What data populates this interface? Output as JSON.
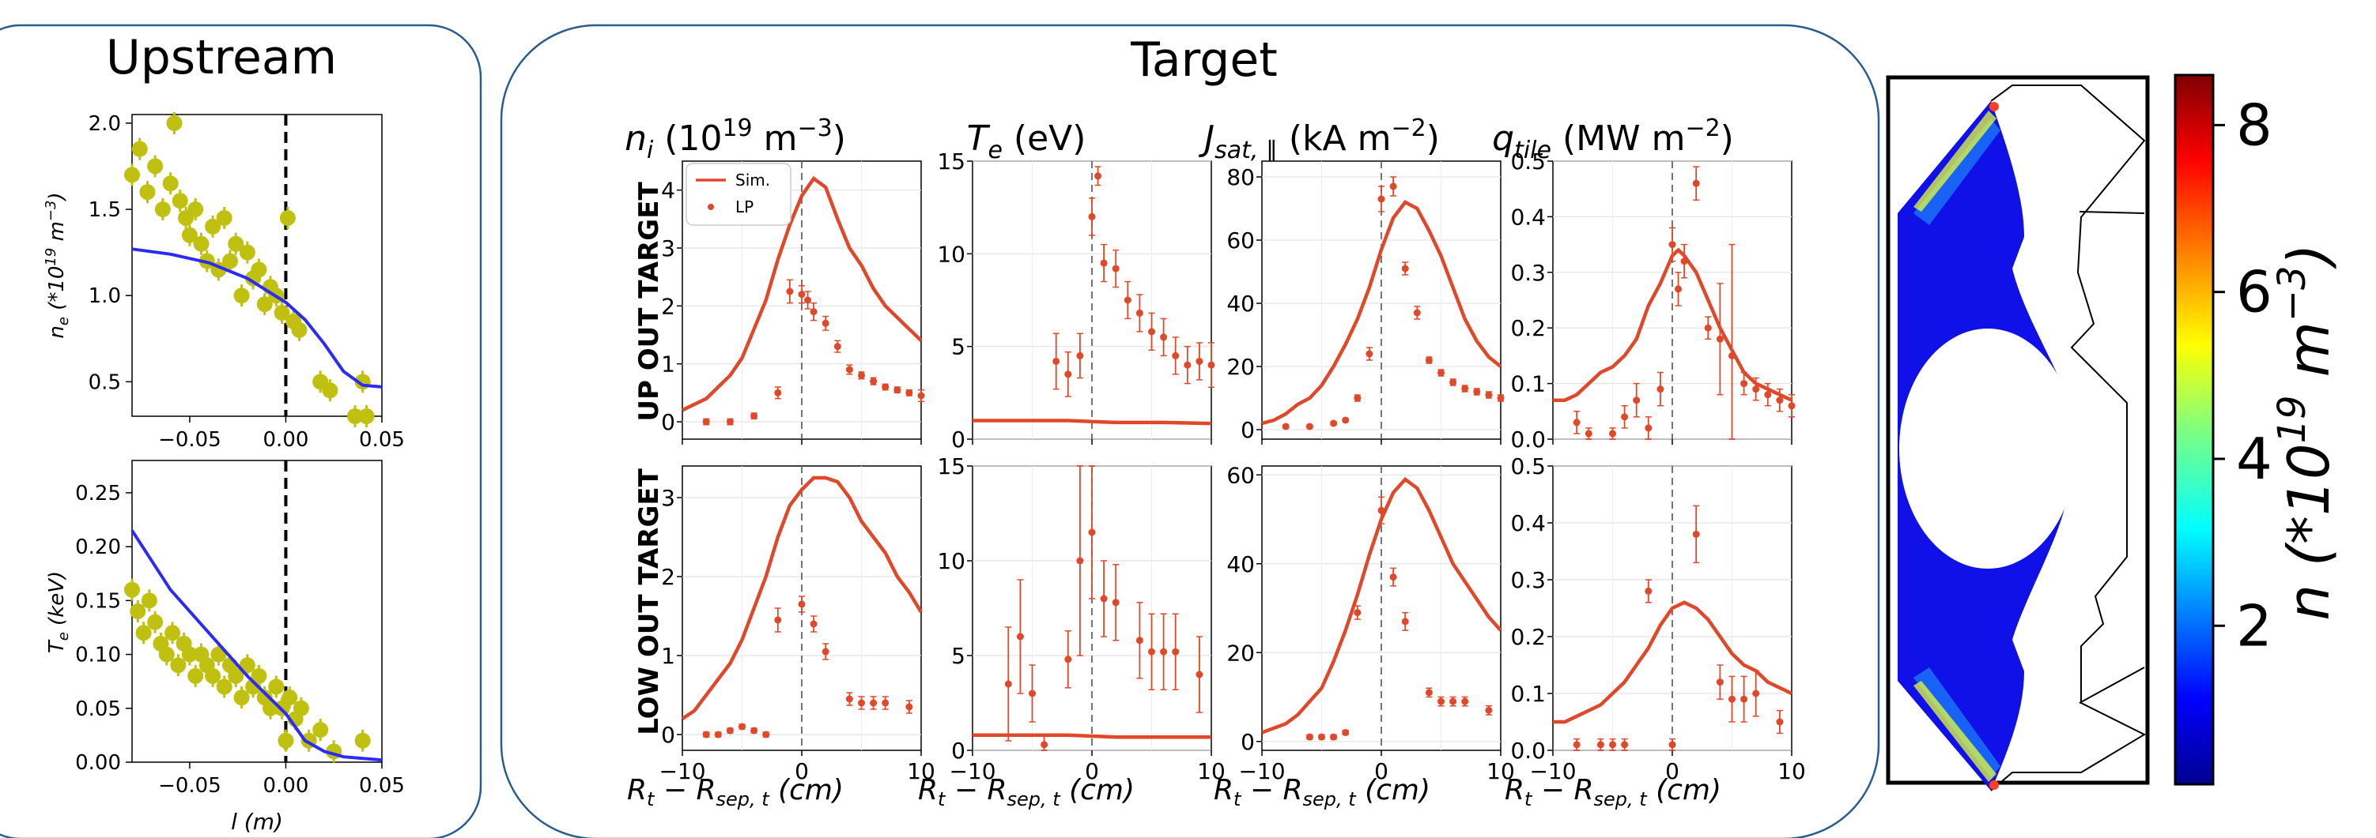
{
  "upstream": {
    "title": "Upstream",
    "x_tick_labels": [
      "−0.05",
      "0.00",
      "0.05"
    ],
    "x_label": "l (m)",
    "panels": [
      {
        "key": "ne",
        "y_label": "n_e (*10^19 m^-3)",
        "ylim": [
          0.3,
          2.05
        ],
        "y_ticks": [
          0.5,
          1.0,
          1.5,
          2.0
        ],
        "y_tick_labels": [
          "0.5",
          "1.0",
          "1.5",
          "2.0"
        ]
      },
      {
        "key": "te",
        "y_label": "T_e (keV)",
        "ylim": [
          0.0,
          0.28
        ],
        "y_ticks": [
          0.0,
          0.05,
          0.1,
          0.15,
          0.2,
          0.25
        ],
        "y_tick_labels": [
          "0.00",
          "0.05",
          "0.10",
          "0.15",
          "0.20",
          "0.25"
        ]
      }
    ]
  },
  "target": {
    "title": "Target",
    "column_titles": [
      "n_i (10^19 m^-3)",
      "T_e (eV)",
      "J_sat,∥ (kA m^-2)",
      "q_tile (MW m^-2)"
    ],
    "row_labels": [
      "UP OUT TARGET",
      "LOW OUT TARGET"
    ],
    "x_tick_labels": [
      "−10",
      "0",
      "10"
    ],
    "x_label": "R_t − R_sep,t (cm)",
    "legend": {
      "sim": "Sim.",
      "lp": "LP"
    }
  },
  "colorbar": {
    "tick_labels": [
      "2",
      "4",
      "6",
      "8"
    ],
    "label": "n (*10^19 m^-3)"
  },
  "colors": {
    "sim_target": "#e0482a",
    "lp_points": "#e0482a",
    "upstream_fit": "#2b2bf5",
    "upstream_points": "#c0c010",
    "frame": "#2a5d8f"
  },
  "chart_data": [
    {
      "type": "scatter",
      "id": "upstream_ne",
      "title": "Upstream",
      "xlabel": "",
      "ylabel": "n_e (*10^19 m^-3)",
      "xlim": [
        -0.08,
        0.05
      ],
      "ylim": [
        0.3,
        2.05
      ],
      "vline": 0.0,
      "series": [
        {
          "kind": "points",
          "x": [
            -0.08,
            -0.076,
            -0.072,
            -0.068,
            -0.064,
            -0.06,
            -0.058,
            -0.055,
            -0.052,
            -0.05,
            -0.047,
            -0.044,
            -0.041,
            -0.038,
            -0.035,
            -0.032,
            -0.029,
            -0.026,
            -0.023,
            -0.02,
            -0.017,
            -0.014,
            -0.011,
            -0.008,
            -0.005,
            -0.002,
            0.001,
            0.004,
            0.007,
            0.018,
            0.023,
            0.036,
            0.04,
            0.042
          ],
          "y": [
            1.7,
            1.85,
            1.6,
            1.75,
            1.5,
            1.65,
            2.0,
            1.55,
            1.45,
            1.35,
            1.5,
            1.3,
            1.2,
            1.4,
            1.15,
            1.45,
            1.2,
            1.3,
            1.0,
            1.25,
            1.1,
            1.15,
            0.95,
            1.05,
            1.0,
            0.9,
            1.45,
            0.85,
            0.8,
            0.5,
            0.45,
            0.3,
            0.5,
            0.3
          ]
        },
        {
          "kind": "line",
          "x": [
            -0.08,
            -0.06,
            -0.04,
            -0.02,
            -0.01,
            0.0,
            0.01,
            0.02,
            0.03,
            0.04,
            0.05
          ],
          "y": [
            1.27,
            1.24,
            1.19,
            1.1,
            1.03,
            0.96,
            0.86,
            0.72,
            0.56,
            0.48,
            0.47
          ]
        }
      ]
    },
    {
      "type": "scatter",
      "id": "upstream_te",
      "xlabel": "l (m)",
      "ylabel": "T_e (keV)",
      "xlim": [
        -0.08,
        0.05
      ],
      "ylim": [
        0.0,
        0.28
      ],
      "vline": 0.0,
      "series": [
        {
          "kind": "points",
          "x": [
            -0.08,
            -0.077,
            -0.074,
            -0.071,
            -0.068,
            -0.065,
            -0.062,
            -0.059,
            -0.056,
            -0.053,
            -0.05,
            -0.047,
            -0.044,
            -0.041,
            -0.038,
            -0.035,
            -0.032,
            -0.029,
            -0.026,
            -0.023,
            -0.02,
            -0.017,
            -0.014,
            -0.011,
            -0.008,
            -0.005,
            -0.002,
            0.0,
            0.002,
            0.005,
            0.008,
            0.012,
            0.018,
            0.025,
            0.04
          ],
          "y": [
            0.16,
            0.14,
            0.12,
            0.15,
            0.13,
            0.11,
            0.1,
            0.12,
            0.09,
            0.11,
            0.1,
            0.08,
            0.1,
            0.09,
            0.08,
            0.1,
            0.07,
            0.09,
            0.08,
            0.06,
            0.09,
            0.07,
            0.08,
            0.06,
            0.05,
            0.07,
            0.05,
            0.02,
            0.06,
            0.04,
            0.05,
            0.02,
            0.03,
            0.01,
            0.02
          ]
        },
        {
          "kind": "line",
          "x": [
            -0.08,
            -0.06,
            -0.04,
            -0.02,
            0.0,
            0.01,
            0.02,
            0.03,
            0.05
          ],
          "y": [
            0.215,
            0.16,
            0.12,
            0.08,
            0.045,
            0.02,
            0.01,
            0.005,
            0.002
          ]
        }
      ]
    },
    {
      "type": "line",
      "id": "up_ni",
      "xlim": [
        -10,
        10
      ],
      "ylim": [
        -0.3,
        4.5
      ],
      "y_ticks": [
        0,
        1,
        2,
        3,
        4
      ],
      "vline": 0,
      "sim": {
        "x": [
          -10,
          -9,
          -8,
          -7,
          -6,
          -5,
          -4,
          -3,
          -2,
          -1,
          0,
          1,
          2,
          3,
          4,
          5,
          6,
          7,
          8,
          9,
          10
        ],
        "y": [
          0.2,
          0.3,
          0.4,
          0.6,
          0.8,
          1.1,
          1.6,
          2.1,
          2.8,
          3.4,
          3.9,
          4.2,
          4.05,
          3.5,
          3.0,
          2.7,
          2.3,
          2.0,
          1.8,
          1.6,
          1.4
        ]
      },
      "lp": {
        "x": [
          -8,
          -6,
          -4,
          -2,
          -1,
          0,
          0.5,
          1,
          2,
          3,
          4,
          5,
          6,
          7,
          8,
          9,
          10
        ],
        "y": [
          0.0,
          0.0,
          0.1,
          0.5,
          2.25,
          2.2,
          2.1,
          1.9,
          1.7,
          1.3,
          0.9,
          0.8,
          0.7,
          0.6,
          0.55,
          0.5,
          0.45
        ],
        "err": [
          0.05,
          0.05,
          0.05,
          0.1,
          0.2,
          0.15,
          0.15,
          0.15,
          0.12,
          0.1,
          0.08,
          0.06,
          0.06,
          0.05,
          0.05,
          0.05,
          0.1
        ]
      }
    },
    {
      "type": "line",
      "id": "up_te",
      "xlim": [
        -10,
        10
      ],
      "ylim": [
        0,
        15
      ],
      "y_ticks": [
        0,
        5,
        10,
        15
      ],
      "vline": 0,
      "sim": {
        "x": [
          -10,
          -6,
          -2,
          0,
          2,
          6,
          10
        ],
        "y": [
          1.0,
          1.0,
          1.0,
          0.95,
          0.9,
          0.9,
          0.85
        ]
      },
      "lp": {
        "x": [
          -3,
          -2,
          -1,
          0,
          0.5,
          1,
          2,
          3,
          4,
          5,
          6,
          7,
          8,
          9,
          10
        ],
        "y": [
          4.2,
          3.5,
          4.5,
          12.0,
          14.2,
          9.5,
          9.2,
          7.5,
          6.8,
          5.8,
          5.5,
          4.5,
          4.0,
          4.2,
          4.0
        ],
        "err": [
          1.5,
          1.2,
          1.2,
          1.0,
          0.5,
          1.0,
          1.0,
          1.0,
          1.0,
          1.0,
          1.0,
          1.0,
          1.0,
          1.0,
          1.2
        ]
      }
    },
    {
      "type": "line",
      "id": "up_jsat",
      "xlim": [
        -10,
        10
      ],
      "ylim": [
        -3,
        85
      ],
      "y_ticks": [
        0,
        20,
        40,
        60,
        80
      ],
      "vline": 0,
      "sim": {
        "x": [
          -10,
          -9,
          -8,
          -7,
          -6,
          -5,
          -4,
          -3,
          -2,
          -1,
          0,
          1,
          2,
          3,
          4,
          5,
          6,
          7,
          8,
          9,
          10
        ],
        "y": [
          2,
          3,
          5,
          8,
          10,
          14,
          20,
          27,
          35,
          45,
          57,
          67,
          72,
          70,
          63,
          55,
          45,
          35,
          28,
          23,
          20
        ]
      },
      "lp": {
        "x": [
          -8,
          -6,
          -4,
          -3,
          -2,
          -1,
          0,
          1,
          2,
          3,
          4,
          5,
          6,
          7,
          8,
          9,
          10
        ],
        "y": [
          1,
          1,
          2,
          3,
          10,
          24,
          73,
          77,
          51,
          37,
          22,
          18,
          15,
          13,
          12,
          11,
          10
        ],
        "err": [
          0.5,
          0.5,
          0.5,
          0.5,
          1,
          2,
          4,
          3,
          2,
          2,
          1,
          1,
          1,
          1,
          1,
          1,
          1
        ]
      }
    },
    {
      "type": "line",
      "id": "up_q",
      "xlim": [
        -10,
        10
      ],
      "ylim": [
        0,
        0.5
      ],
      "y_ticks": [
        0.0,
        0.1,
        0.2,
        0.3,
        0.4,
        0.5
      ],
      "vline": 0,
      "sim": {
        "x": [
          -10,
          -9,
          -8,
          -7,
          -6,
          -5,
          -4,
          -3,
          -2,
          -1,
          0,
          0.5,
          1,
          2,
          3,
          4,
          5,
          6,
          7,
          8,
          9,
          10
        ],
        "y": [
          0.07,
          0.07,
          0.08,
          0.1,
          0.12,
          0.13,
          0.15,
          0.18,
          0.24,
          0.28,
          0.33,
          0.34,
          0.33,
          0.3,
          0.25,
          0.2,
          0.16,
          0.12,
          0.1,
          0.09,
          0.08,
          0.07
        ]
      },
      "lp": {
        "x": [
          -8,
          -7,
          -5,
          -4,
          -3,
          -2,
          -1,
          0,
          0.5,
          1,
          2,
          3,
          4,
          5,
          6,
          7,
          8,
          9,
          10
        ],
        "y": [
          0.03,
          0.01,
          0.01,
          0.04,
          0.07,
          0.02,
          0.09,
          0.35,
          0.27,
          0.32,
          0.46,
          0.2,
          0.18,
          0.15,
          0.1,
          0.09,
          0.08,
          0.07,
          0.06
        ],
        "err": [
          0.02,
          0.01,
          0.01,
          0.02,
          0.03,
          0.02,
          0.03,
          0.03,
          0.03,
          0.03,
          0.03,
          0.02,
          0.1,
          0.2,
          0.02,
          0.02,
          0.02,
          0.02,
          0.02
        ]
      }
    },
    {
      "type": "line",
      "id": "low_ni",
      "xlim": [
        -10,
        10
      ],
      "ylim": [
        -0.2,
        3.4
      ],
      "y_ticks": [
        0,
        1,
        2,
        3
      ],
      "vline": 0,
      "sim": {
        "x": [
          -10,
          -9,
          -8,
          -7,
          -6,
          -5,
          -4,
          -3,
          -2,
          -1,
          0,
          1,
          2,
          3,
          4,
          5,
          6,
          7,
          8,
          9,
          10
        ],
        "y": [
          0.2,
          0.3,
          0.5,
          0.7,
          0.9,
          1.2,
          1.6,
          2.0,
          2.5,
          2.9,
          3.1,
          3.25,
          3.25,
          3.2,
          3.0,
          2.7,
          2.5,
          2.3,
          2.0,
          1.8,
          1.55
        ]
      },
      "lp": {
        "x": [
          -8,
          -7,
          -6,
          -5,
          -4,
          -3,
          -2,
          0,
          1,
          2,
          4,
          5,
          6,
          7,
          9
        ],
        "y": [
          0.0,
          0.0,
          0.05,
          0.1,
          0.05,
          0.0,
          1.45,
          1.65,
          1.4,
          1.05,
          0.45,
          0.4,
          0.4,
          0.4,
          0.35
        ],
        "err": [
          0.03,
          0.03,
          0.03,
          0.03,
          0.03,
          0.03,
          0.15,
          0.1,
          0.1,
          0.1,
          0.08,
          0.08,
          0.08,
          0.08,
          0.08
        ]
      }
    },
    {
      "type": "line",
      "id": "low_te",
      "xlim": [
        -10,
        10
      ],
      "ylim": [
        0,
        15
      ],
      "y_ticks": [
        0,
        5,
        10,
        15
      ],
      "vline": 0,
      "sim": {
        "x": [
          -10,
          -6,
          -2,
          0,
          2,
          6,
          10
        ],
        "y": [
          0.8,
          0.8,
          0.8,
          0.75,
          0.7,
          0.7,
          0.7
        ]
      },
      "lp": {
        "x": [
          -7,
          -6,
          -5,
          -4,
          -2,
          -1,
          0,
          1,
          2,
          4,
          5,
          6,
          7,
          9
        ],
        "y": [
          3.5,
          6.0,
          3.0,
          0.3,
          4.8,
          10.0,
          11.5,
          8.0,
          7.8,
          5.8,
          5.2,
          5.2,
          5.2,
          4.0
        ],
        "err": [
          3.0,
          3.0,
          1.5,
          0.5,
          1.5,
          5.0,
          3.5,
          2.0,
          2.0,
          2.0,
          2.0,
          2.0,
          2.0,
          2.0
        ]
      }
    },
    {
      "type": "line",
      "id": "low_jsat",
      "xlim": [
        -10,
        10
      ],
      "ylim": [
        -2,
        62
      ],
      "y_ticks": [
        0,
        20,
        40,
        60
      ],
      "vline": 0,
      "sim": {
        "x": [
          -10,
          -9,
          -8,
          -7,
          -6,
          -5,
          -4,
          -3,
          -2,
          -1,
          0,
          1,
          2,
          3,
          4,
          5,
          6,
          7,
          8,
          9,
          10
        ],
        "y": [
          2,
          3,
          4,
          6,
          9,
          12,
          18,
          25,
          33,
          42,
          50,
          56,
          59,
          57,
          52,
          46,
          40,
          36,
          32,
          28,
          25
        ]
      },
      "lp": {
        "x": [
          -6,
          -5,
          -4,
          -3,
          -2,
          0,
          1,
          2,
          4,
          5,
          6,
          7,
          9
        ],
        "y": [
          1,
          1,
          1,
          2,
          29,
          52,
          37,
          27,
          11,
          9,
          9,
          9,
          7
        ],
        "err": [
          0.5,
          0.5,
          0.5,
          0.5,
          1.5,
          3,
          2,
          2,
          1,
          1,
          1,
          1,
          1
        ]
      }
    },
    {
      "type": "line",
      "id": "low_q",
      "xlim": [
        -10,
        10
      ],
      "ylim": [
        0,
        0.5
      ],
      "y_ticks": [
        0.0,
        0.1,
        0.2,
        0.3,
        0.4,
        0.5
      ],
      "vline": 0,
      "sim": {
        "x": [
          -10,
          -9,
          -8,
          -7,
          -6,
          -5,
          -4,
          -3,
          -2,
          -1,
          0,
          1,
          2,
          3,
          4,
          5,
          6,
          7,
          8,
          9,
          10
        ],
        "y": [
          0.05,
          0.05,
          0.06,
          0.07,
          0.08,
          0.1,
          0.12,
          0.15,
          0.18,
          0.22,
          0.25,
          0.26,
          0.25,
          0.23,
          0.2,
          0.17,
          0.15,
          0.14,
          0.12,
          0.11,
          0.1
        ]
      },
      "lp": {
        "x": [
          -8,
          -6,
          -5,
          -4,
          -2,
          0,
          2,
          4,
          5,
          6,
          7,
          9
        ],
        "y": [
          0.01,
          0.01,
          0.01,
          0.01,
          0.28,
          0.01,
          0.38,
          0.12,
          0.09,
          0.09,
          0.1,
          0.05
        ],
        "err": [
          0.01,
          0.01,
          0.01,
          0.01,
          0.02,
          0.01,
          0.05,
          0.03,
          0.04,
          0.04,
          0.04,
          0.02
        ]
      }
    }
  ]
}
